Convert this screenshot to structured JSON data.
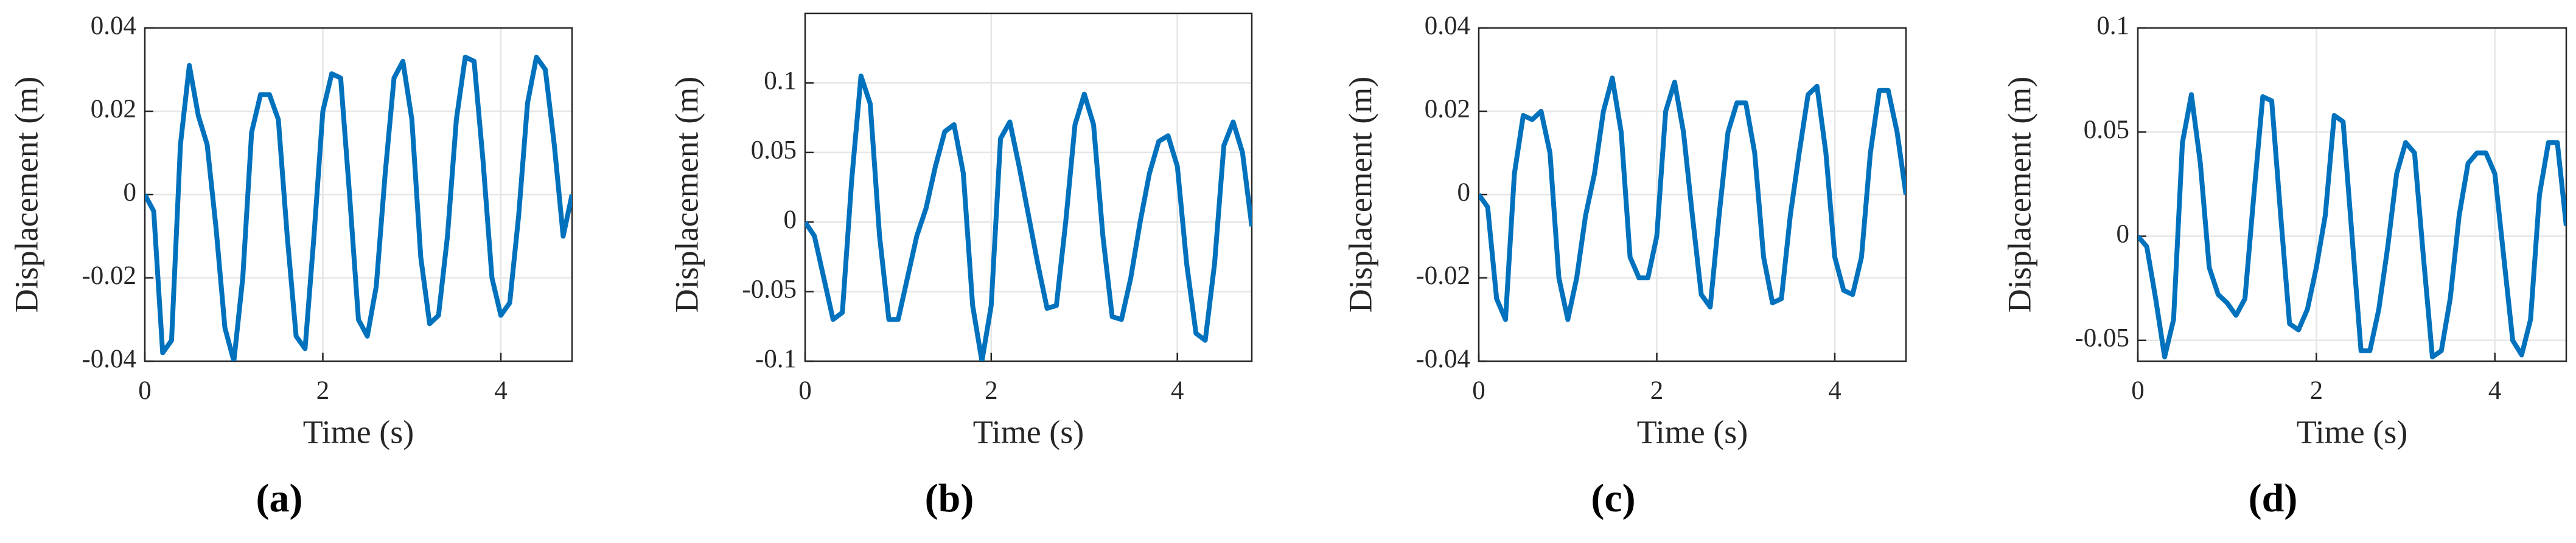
{
  "chart_data": [
    {
      "type": "line",
      "label": "(a)",
      "xlabel": "Time (s)",
      "ylabel": "Displacement (m)",
      "color": "#0072bd",
      "grid": true,
      "xlim": [
        0,
        4.8
      ],
      "ylim": [
        -0.04,
        0.04
      ],
      "xticks": [
        0,
        2,
        4
      ],
      "yticks": [
        -0.04,
        -0.02,
        0,
        0.02,
        0.04
      ],
      "x": [
        0,
        0.1,
        0.2,
        0.3,
        0.4,
        0.5,
        0.6,
        0.7,
        0.8,
        0.9,
        1,
        1.1,
        1.2,
        1.3,
        1.4,
        1.5,
        1.6,
        1.7,
        1.8,
        1.9,
        2,
        2.1,
        2.2,
        2.3,
        2.4,
        2.5,
        2.6,
        2.7,
        2.8,
        2.9,
        3,
        3.1,
        3.2,
        3.3,
        3.4,
        3.5,
        3.6,
        3.7,
        3.8,
        3.9,
        4,
        4.1,
        4.2,
        4.3,
        4.4,
        4.5,
        4.6,
        4.7,
        4.8
      ],
      "values": [
        0,
        -0.004,
        -0.038,
        -0.035,
        0.012,
        0.031,
        0.019,
        0.012,
        -0.008,
        -0.032,
        -0.04,
        -0.02,
        0.015,
        0.024,
        0.024,
        0.018,
        -0.01,
        -0.034,
        -0.037,
        -0.01,
        0.02,
        0.029,
        0.028,
        0,
        -0.03,
        -0.034,
        -0.022,
        0.005,
        0.028,
        0.032,
        0.018,
        -0.015,
        -0.031,
        -0.029,
        -0.01,
        0.018,
        0.033,
        0.032,
        0.008,
        -0.02,
        -0.029,
        -0.026,
        -0.005,
        0.022,
        0.033,
        0.03,
        0.012,
        -0.01,
        0
      ]
    },
    {
      "type": "line",
      "label": "(b)",
      "xlabel": "Time (s)",
      "ylabel": "Displacement (m)",
      "color": "#0072bd",
      "grid": true,
      "xlim": [
        0,
        4.8
      ],
      "ylim": [
        -0.1,
        0.15
      ],
      "xticks": [
        0,
        2,
        4
      ],
      "yticks": [
        -0.1,
        -0.05,
        0,
        0.05,
        0.1
      ],
      "x": [
        0,
        0.1,
        0.2,
        0.3,
        0.4,
        0.5,
        0.6,
        0.7,
        0.8,
        0.9,
        1,
        1.1,
        1.2,
        1.3,
        1.4,
        1.5,
        1.6,
        1.7,
        1.8,
        1.9,
        2,
        2.1,
        2.2,
        2.3,
        2.4,
        2.5,
        2.6,
        2.7,
        2.8,
        2.9,
        3,
        3.1,
        3.2,
        3.3,
        3.4,
        3.5,
        3.6,
        3.7,
        3.8,
        3.9,
        4,
        4.1,
        4.2,
        4.3,
        4.4,
        4.5,
        4.6,
        4.7,
        4.8
      ],
      "values": [
        0,
        -0.01,
        -0.04,
        -0.07,
        -0.065,
        0.03,
        0.105,
        0.085,
        -0.01,
        -0.07,
        -0.07,
        -0.04,
        -0.01,
        0.01,
        0.04,
        0.065,
        0.07,
        0.035,
        -0.06,
        -0.1,
        -0.06,
        0.06,
        0.072,
        0.04,
        0.005,
        -0.03,
        -0.062,
        -0.06,
        0,
        0.07,
        0.092,
        0.07,
        -0.01,
        -0.068,
        -0.07,
        -0.04,
        0,
        0.035,
        0.058,
        0.062,
        0.04,
        -0.03,
        -0.08,
        -0.085,
        -0.03,
        0.055,
        0.072,
        0.05,
        -0.003
      ]
    },
    {
      "type": "line",
      "label": "(c)",
      "xlabel": "Time (s)",
      "ylabel": "Displacement (m)",
      "color": "#0072bd",
      "grid": true,
      "xlim": [
        0,
        4.8
      ],
      "ylim": [
        -0.04,
        0.04
      ],
      "xticks": [
        0,
        2,
        4
      ],
      "yticks": [
        -0.04,
        -0.02,
        0,
        0.02,
        0.04
      ],
      "x": [
        0,
        0.1,
        0.2,
        0.3,
        0.4,
        0.5,
        0.6,
        0.7,
        0.8,
        0.9,
        1,
        1.1,
        1.2,
        1.3,
        1.4,
        1.5,
        1.6,
        1.7,
        1.8,
        1.9,
        2,
        2.1,
        2.2,
        2.3,
        2.4,
        2.5,
        2.6,
        2.7,
        2.8,
        2.9,
        3,
        3.1,
        3.2,
        3.3,
        3.4,
        3.5,
        3.6,
        3.7,
        3.8,
        3.9,
        4,
        4.1,
        4.2,
        4.3,
        4.4,
        4.5,
        4.6,
        4.7,
        4.8
      ],
      "values": [
        0,
        -0.003,
        -0.025,
        -0.03,
        0.005,
        0.019,
        0.018,
        0.02,
        0.01,
        -0.02,
        -0.03,
        -0.02,
        -0.005,
        0.005,
        0.02,
        0.028,
        0.015,
        -0.015,
        -0.02,
        -0.02,
        -0.01,
        0.02,
        0.027,
        0.015,
        -0.005,
        -0.024,
        -0.027,
        -0.005,
        0.015,
        0.022,
        0.022,
        0.01,
        -0.015,
        -0.026,
        -0.025,
        -0.005,
        0.01,
        0.024,
        0.026,
        0.01,
        -0.015,
        -0.023,
        -0.024,
        -0.015,
        0.01,
        0.025,
        0.025,
        0.015,
        0
      ]
    },
    {
      "type": "line",
      "label": "(d)",
      "xlabel": "Time (s)",
      "ylabel": "Displacement (m)",
      "color": "#0072bd",
      "grid": true,
      "xlim": [
        0,
        4.8
      ],
      "ylim": [
        -0.06,
        0.1
      ],
      "xticks": [
        0,
        2,
        4
      ],
      "yticks": [
        -0.05,
        0,
        0.05,
        0.1
      ],
      "x": [
        0,
        0.1,
        0.2,
        0.3,
        0.4,
        0.5,
        0.6,
        0.7,
        0.8,
        0.9,
        1,
        1.1,
        1.2,
        1.3,
        1.4,
        1.5,
        1.6,
        1.7,
        1.8,
        1.9,
        2,
        2.1,
        2.2,
        2.3,
        2.4,
        2.5,
        2.6,
        2.7,
        2.8,
        2.9,
        3,
        3.1,
        3.2,
        3.3,
        3.4,
        3.5,
        3.6,
        3.7,
        3.8,
        3.9,
        4,
        4.1,
        4.2,
        4.3,
        4.4,
        4.5,
        4.6,
        4.7,
        4.8
      ],
      "values": [
        0,
        -0.005,
        -0.03,
        -0.058,
        -0.04,
        0.045,
        0.068,
        0.035,
        -0.015,
        -0.028,
        -0.032,
        -0.038,
        -0.03,
        0.02,
        0.067,
        0.065,
        0.01,
        -0.042,
        -0.045,
        -0.035,
        -0.015,
        0.01,
        0.058,
        0.055,
        0,
        -0.055,
        -0.055,
        -0.035,
        -0.005,
        0.03,
        0.045,
        0.04,
        -0.01,
        -0.058,
        -0.055,
        -0.03,
        0.01,
        0.035,
        0.04,
        0.04,
        0.03,
        -0.01,
        -0.05,
        -0.057,
        -0.04,
        0.02,
        0.045,
        0.045,
        0.005
      ]
    }
  ]
}
